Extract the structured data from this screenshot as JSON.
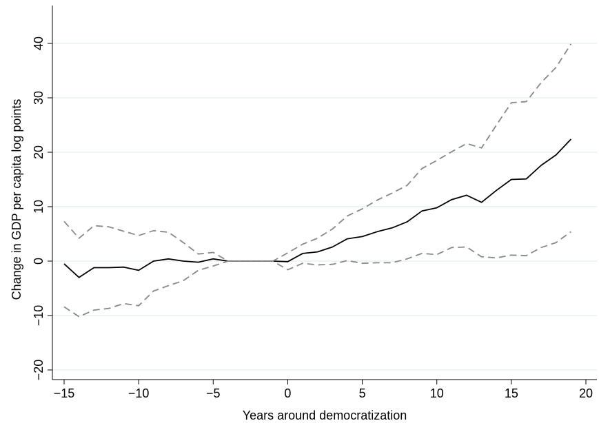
{
  "chart_data": {
    "type": "line",
    "xlabel": "Years around democratization",
    "ylabel": "Change in GDP per capita log points",
    "xlim": [
      -15,
      20
    ],
    "ylim": [
      -20,
      40
    ],
    "x_ticks": [
      -15,
      -10,
      -5,
      0,
      5,
      10,
      15,
      20
    ],
    "y_ticks": [
      -20,
      -10,
      0,
      10,
      20,
      30,
      40
    ],
    "x_tick_labels": [
      "−15",
      "−10",
      "−5",
      "0",
      "5",
      "10",
      "15",
      "20"
    ],
    "y_tick_labels": [
      "−20",
      "−10",
      "0",
      "10",
      "20",
      "30",
      "40"
    ],
    "grid": "horizontal",
    "legend": "none",
    "x": [
      -15,
      -14,
      -13,
      -12,
      -11,
      -10,
      -9,
      -8,
      -7,
      -6,
      -5,
      -4,
      -3,
      -2,
      -1,
      0,
      1,
      2,
      3,
      4,
      5,
      6,
      7,
      8,
      9,
      10,
      11,
      12,
      13,
      14,
      15,
      16,
      17,
      18,
      19
    ],
    "series": [
      {
        "style": "solid",
        "color": "#000000",
        "values": [
          -0.5,
          -3.0,
          -1.2,
          -1.2,
          -1.1,
          -1.7,
          0.0,
          0.4,
          0.0,
          -0.2,
          0.4,
          0.0,
          0.0,
          0.0,
          0.0,
          -0.1,
          1.4,
          1.7,
          2.6,
          4.1,
          4.5,
          5.4,
          6.1,
          7.2,
          9.2,
          9.8,
          11.3,
          12.1,
          10.8,
          13.0,
          15.0,
          15.1,
          17.6,
          19.5,
          22.4
        ]
      },
      {
        "style": "dashed",
        "color": "#888888",
        "values": [
          7.3,
          4.2,
          6.5,
          6.3,
          5.5,
          4.7,
          5.6,
          5.3,
          3.4,
          1.3,
          1.6,
          0.0,
          0.0,
          0.0,
          0.0,
          1.5,
          3.1,
          4.2,
          5.9,
          8.3,
          9.6,
          11.2,
          12.5,
          13.9,
          17.0,
          18.5,
          20.1,
          21.6,
          20.8,
          25.0,
          29.1,
          29.3,
          32.8,
          35.6,
          39.9
        ]
      },
      {
        "style": "dashed",
        "color": "#888888",
        "values": [
          -8.4,
          -10.2,
          -9.0,
          -8.7,
          -7.8,
          -8.2,
          -5.5,
          -4.5,
          -3.6,
          -1.7,
          -0.9,
          0.0,
          0.0,
          0.0,
          0.0,
          -1.6,
          -0.4,
          -0.7,
          -0.6,
          0.1,
          -0.4,
          -0.3,
          -0.3,
          0.4,
          1.4,
          1.2,
          2.5,
          2.6,
          0.8,
          0.6,
          1.1,
          1.0,
          2.5,
          3.4,
          5.4
        ]
      }
    ]
  }
}
